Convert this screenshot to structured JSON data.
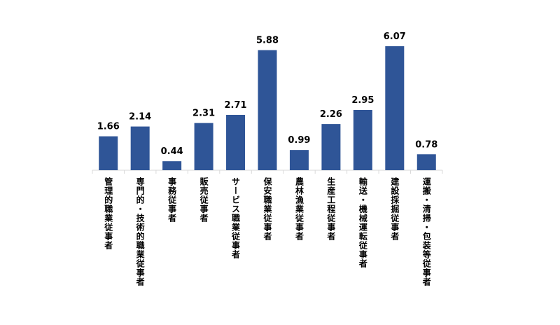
{
  "chart_data": {
    "type": "bar",
    "categories": [
      "管理的職業従事者",
      "専門的・技術的職業従事者",
      "事務従事者",
      "販売従事者",
      "サービス職業従事者",
      "保安職業従事者",
      "農林漁業従事者",
      "生産工程従事者",
      "輸送・機械運転従事者",
      "建設採掘従事者",
      "運搬・清掃・包装等従事者"
    ],
    "values": [
      1.66,
      2.14,
      0.44,
      2.31,
      2.71,
      5.88,
      0.99,
      2.26,
      2.95,
      6.07,
      0.78
    ],
    "color": "#2f5597"
  }
}
